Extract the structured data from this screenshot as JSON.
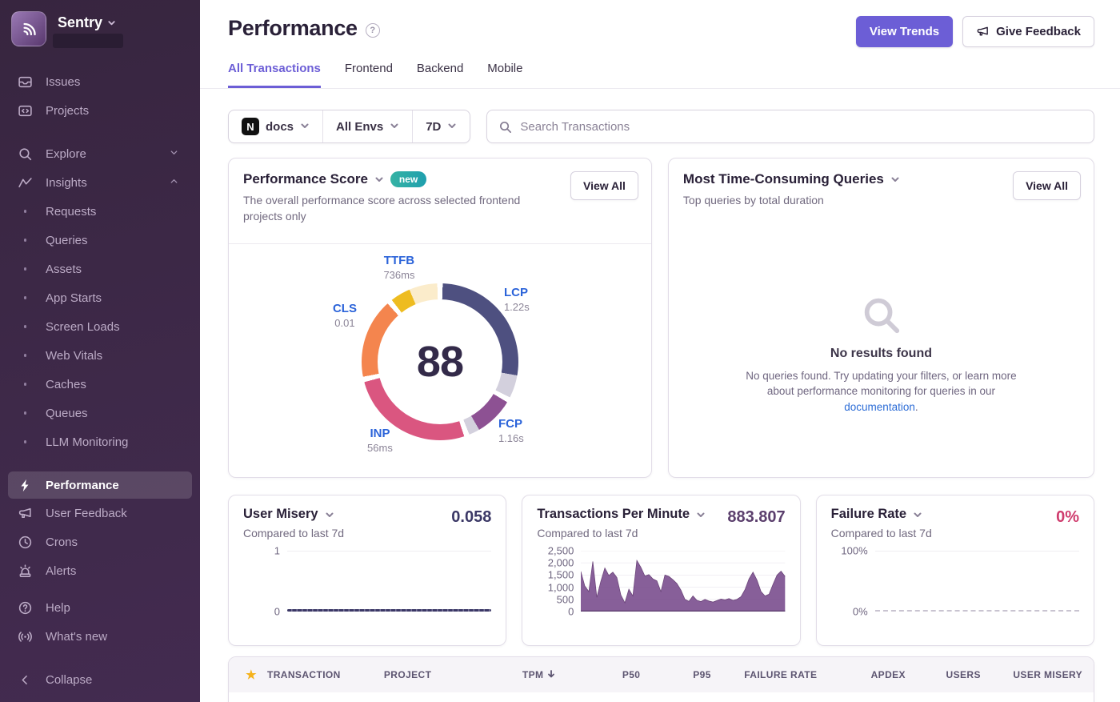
{
  "theme": {
    "accent": "#6c5ed6",
    "link": "#2c6cd6",
    "value_user_misery": "#3b3866",
    "value_tpm": "#5b3f6d",
    "value_failure": "#cf3d6e",
    "tpm_fill": "#7d5190",
    "tpm_stroke": "#6a4378",
    "star": "#f5b21c",
    "badge_from": "#35b3a4",
    "badge_to": "#1f9fae"
  },
  "sidebar": {
    "brand": "Sentry",
    "groups": [
      {
        "gap": "lg",
        "items": [
          {
            "label": "Issues",
            "icon": "issues"
          },
          {
            "label": "Projects",
            "icon": "projects"
          }
        ]
      },
      {
        "gap": "none",
        "items": [
          {
            "label": "Explore",
            "icon": "explore",
            "chevron": "down"
          },
          {
            "label": "Insights",
            "icon": "insights",
            "chevron": "up"
          }
        ]
      },
      {
        "gap": "md",
        "items": [
          {
            "label": "Requests",
            "sub": true
          },
          {
            "label": "Queries",
            "sub": true
          },
          {
            "label": "Assets",
            "sub": true
          },
          {
            "label": "App Starts",
            "sub": true
          },
          {
            "label": "Screen Loads",
            "sub": true
          },
          {
            "label": "Web Vitals",
            "sub": true
          },
          {
            "label": "Caches",
            "sub": true
          },
          {
            "label": "Queues",
            "sub": true
          },
          {
            "label": "LLM Monitoring",
            "sub": true
          }
        ]
      },
      {
        "gap": "sm",
        "items": [
          {
            "label": "Performance",
            "icon": "performance",
            "active": true
          },
          {
            "label": "User Feedback",
            "icon": "feedback"
          },
          {
            "label": "Crons",
            "icon": "crons"
          },
          {
            "label": "Alerts",
            "icon": "alerts"
          }
        ]
      },
      {
        "gap": "none",
        "items": [
          {
            "label": "Help",
            "icon": "help"
          },
          {
            "label": "What's new",
            "icon": "whatsnew"
          }
        ]
      }
    ],
    "collapse": {
      "label": "Collapse"
    }
  },
  "header": {
    "title": "Performance",
    "view_trends_label": "View Trends",
    "give_feedback_label": "Give Feedback"
  },
  "tabs": [
    {
      "label": "All Transactions",
      "active": true
    },
    {
      "label": "Frontend",
      "active": false
    },
    {
      "label": "Backend",
      "active": false
    },
    {
      "label": "Mobile",
      "active": false
    }
  ],
  "filters": {
    "project_label": "docs",
    "project_platform_initial": "N",
    "env_label": "All Envs",
    "range_label": "7D",
    "search_placeholder": "Search Transactions"
  },
  "cards": {
    "performance_score": {
      "title": "Performance Score",
      "badge": "new",
      "subtitle": "The overall performance score across selected frontend projects only",
      "view_all": "View All",
      "score": "88",
      "vitals": [
        {
          "key": "ttfb",
          "label": "TTFB",
          "value": "736ms"
        },
        {
          "key": "lcp",
          "label": "LCP",
          "value": "1.22s"
        },
        {
          "key": "fcp",
          "label": "FCP",
          "value": "1.16s"
        },
        {
          "key": "inp",
          "label": "INP",
          "value": "56ms"
        },
        {
          "key": "cls",
          "label": "CLS",
          "value": "0.01"
        }
      ],
      "donut_segments": [
        {
          "name": "lcp",
          "color": "#4e5080",
          "from": 2,
          "to": 100
        },
        {
          "name": "lcp-remainder",
          "color": "#d3d0dd",
          "from": 100,
          "to": 117
        },
        {
          "name": "fcp",
          "color": "#8d5193",
          "from": 121,
          "to": 150
        },
        {
          "name": "fcp-remainder",
          "color": "#d3d0dd",
          "from": 150,
          "to": 158
        },
        {
          "name": "inp",
          "color": "#da5680",
          "from": 162,
          "to": 255
        },
        {
          "name": "cls",
          "color": "#f4854e",
          "from": 259,
          "to": 318
        },
        {
          "name": "ttfb",
          "color": "#eebc20",
          "from": 322,
          "to": 337
        },
        {
          "name": "ttfb-remainder",
          "color": "#fbeccb",
          "from": 337,
          "to": 358
        }
      ]
    },
    "queries": {
      "title": "Most Time-Consuming Queries",
      "subtitle": "Top queries by total duration",
      "view_all": "View All",
      "empty": {
        "title": "No results found",
        "body_pre": "No queries found. Try updating your filters, or learn more about performance monitoring for queries in our ",
        "link": "documentation",
        "body_post": "."
      }
    },
    "user_misery": {
      "title": "User Misery",
      "subtitle": "Compared to last 7d",
      "value": "0.058",
      "ymax_label": "1",
      "ymin_label": "0"
    },
    "tpm": {
      "title": "Transactions Per Minute",
      "subtitle": "Compared to last 7d",
      "value": "883.807",
      "yticks": [
        "2,500",
        "2,000",
        "1,500",
        "1,000",
        "500",
        "0"
      ],
      "ymax": 2500,
      "series": [
        1650,
        1050,
        820,
        2060,
        580,
        1240,
        1790,
        1480,
        1620,
        1400,
        680,
        360,
        920,
        640,
        2100,
        1820,
        1460,
        1520,
        1340,
        1260,
        820,
        1500,
        1440,
        1310,
        1150,
        880,
        500,
        420,
        640,
        460,
        410,
        500,
        430,
        390,
        450,
        510,
        480,
        530,
        460,
        500,
        610,
        900,
        1340,
        1620,
        1290,
        820,
        640,
        710,
        1120,
        1500,
        1660,
        1440
      ]
    },
    "failure_rate": {
      "title": "Failure Rate",
      "subtitle": "Compared to last 7d",
      "value": "0%",
      "ymax_label": "100%",
      "ymin_label": "0%"
    }
  },
  "table": {
    "columns": [
      {
        "label": "",
        "icon": "star",
        "align": "center"
      },
      {
        "label": "TRANSACTION",
        "align": "left"
      },
      {
        "label": "PROJECT",
        "align": "left"
      },
      {
        "label": "TPM",
        "align": "right",
        "sorted": "desc"
      },
      {
        "label": "P50",
        "align": "right"
      },
      {
        "label": "P95",
        "align": "right"
      },
      {
        "label": "FAILURE RATE",
        "align": "right"
      },
      {
        "label": "APDEX",
        "align": "right"
      },
      {
        "label": "USERS",
        "align": "right"
      },
      {
        "label": "USER MISERY",
        "align": "right"
      }
    ]
  }
}
